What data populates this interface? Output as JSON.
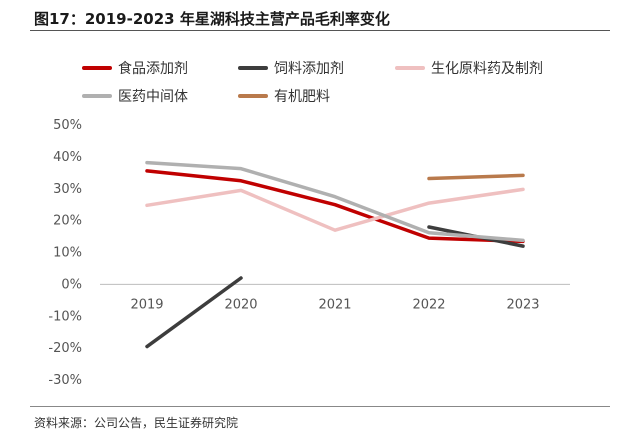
{
  "figure": {
    "title": "图17：2019-2023 年星湖科技主营产品毛利率变化",
    "source": "资料来源：公司公告，民生证券研究院"
  },
  "chart_data": {
    "type": "line",
    "categories": [
      "2019",
      "2020",
      "2021",
      "2022",
      "2023"
    ],
    "ylim": [
      -30,
      50
    ],
    "yticks": [
      "50%",
      "40%",
      "30%",
      "20%",
      "10%",
      "0%",
      "-10%",
      "-20%",
      "-30%"
    ],
    "ytick_values": [
      50,
      40,
      30,
      20,
      10,
      0,
      -10,
      -20,
      -30
    ],
    "grid": false,
    "legend_position": "top",
    "series": [
      {
        "name": "食品添加剂",
        "color": "#c00000",
        "values": [
          35.6,
          32.5,
          25.0,
          14.5,
          13.5
        ]
      },
      {
        "name": "饲料添加剂",
        "color": "#3d3d3d",
        "values": [
          -19.5,
          2.0,
          null,
          18.0,
          12.0
        ]
      },
      {
        "name": "生化原料药及制剂",
        "color": "#efc0c0",
        "values": [
          24.8,
          29.5,
          17.0,
          25.5,
          29.8
        ]
      },
      {
        "name": "医药中间体",
        "color": "#b0b0b0",
        "values": [
          38.2,
          36.3,
          27.5,
          16.2,
          13.8
        ]
      },
      {
        "name": "有机肥料",
        "color": "#b97a4c",
        "values": [
          null,
          null,
          null,
          33.2,
          34.2
        ]
      }
    ]
  }
}
